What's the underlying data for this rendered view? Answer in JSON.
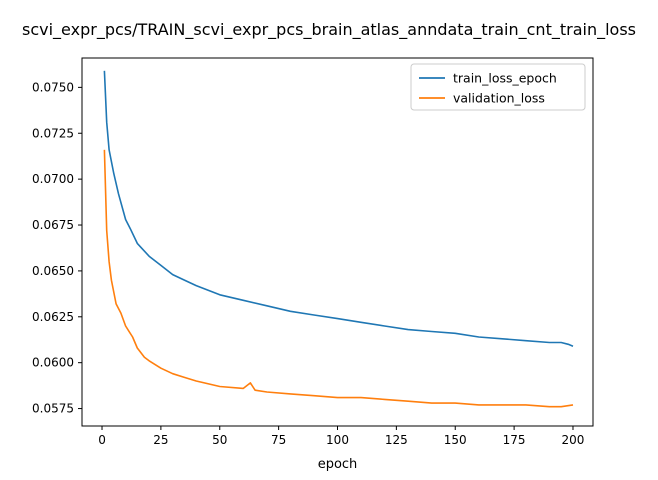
{
  "chart_data": {
    "type": "line",
    "title": "scvi_expr_pcs/TRAIN_scvi_expr_pcs_brain_atlas_anndata_train_cnt_train_loss",
    "xlabel": "epoch",
    "ylabel": "",
    "xlim": [
      -8.5,
      208.5
    ],
    "ylim": [
      0.05655,
      0.0766
    ],
    "x_ticks": [
      0,
      25,
      50,
      75,
      100,
      125,
      150,
      175,
      200
    ],
    "y_ticks": [
      0.0575,
      0.06,
      0.0625,
      0.065,
      0.0675,
      0.07,
      0.0725,
      0.075
    ],
    "y_tick_labels": [
      "0.0575",
      "0.0600",
      "0.0625",
      "0.0650",
      "0.0675",
      "0.0700",
      "0.0725",
      "0.0750"
    ],
    "grid": false,
    "legend_position": "top-right",
    "series": [
      {
        "name": "train_loss_epoch",
        "color": "#1f77b4",
        "x": [
          1,
          2,
          3,
          5,
          7,
          10,
          12,
          15,
          20,
          25,
          30,
          35,
          40,
          50,
          60,
          70,
          80,
          90,
          100,
          110,
          120,
          130,
          140,
          150,
          160,
          170,
          180,
          190,
          195,
          198,
          200
        ],
        "y": [
          0.0759,
          0.0731,
          0.0716,
          0.0703,
          0.0692,
          0.0678,
          0.0673,
          0.0665,
          0.0658,
          0.0653,
          0.0648,
          0.0645,
          0.0642,
          0.0637,
          0.0634,
          0.0631,
          0.0628,
          0.0626,
          0.0624,
          0.0622,
          0.062,
          0.0618,
          0.0617,
          0.0616,
          0.0614,
          0.0613,
          0.0612,
          0.0611,
          0.0611,
          0.061,
          0.0609
        ]
      },
      {
        "name": "validation_loss",
        "color": "#ff7f0e",
        "x": [
          1,
          2,
          3,
          4,
          6,
          8,
          10,
          13,
          15,
          18,
          20,
          25,
          30,
          35,
          40,
          50,
          60,
          63,
          65,
          70,
          80,
          90,
          100,
          110,
          120,
          130,
          140,
          150,
          160,
          170,
          180,
          190,
          195,
          200
        ],
        "y": [
          0.0716,
          0.0672,
          0.0655,
          0.0645,
          0.0632,
          0.0627,
          0.062,
          0.0614,
          0.0608,
          0.0603,
          0.0601,
          0.0597,
          0.0594,
          0.0592,
          0.059,
          0.0587,
          0.0586,
          0.0589,
          0.0585,
          0.0584,
          0.0583,
          0.0582,
          0.0581,
          0.0581,
          0.058,
          0.0579,
          0.0578,
          0.0578,
          0.0577,
          0.0577,
          0.0577,
          0.0576,
          0.0576,
          0.0577
        ]
      }
    ]
  }
}
